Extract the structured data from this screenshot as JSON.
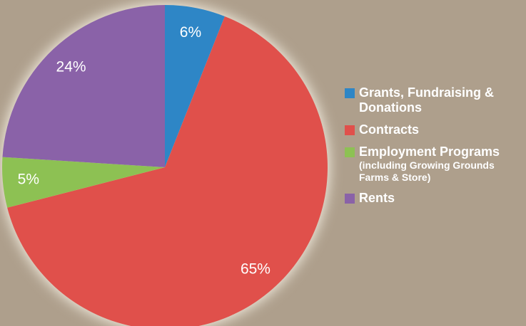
{
  "chart_data": {
    "type": "pie",
    "categories": [
      "Grants, Fundraising & Donations",
      "Contracts",
      "Employment Programs",
      "Rents"
    ],
    "category_notes": [
      null,
      null,
      "(including Growing Grounds Farms & Store)",
      null
    ],
    "values": [
      6,
      65,
      5,
      24
    ],
    "value_labels": [
      "6%",
      "65%",
      "5%",
      "24%"
    ],
    "colors": [
      "#2e86c6",
      "#e0504b",
      "#8dc153",
      "#8a62a8"
    ]
  }
}
